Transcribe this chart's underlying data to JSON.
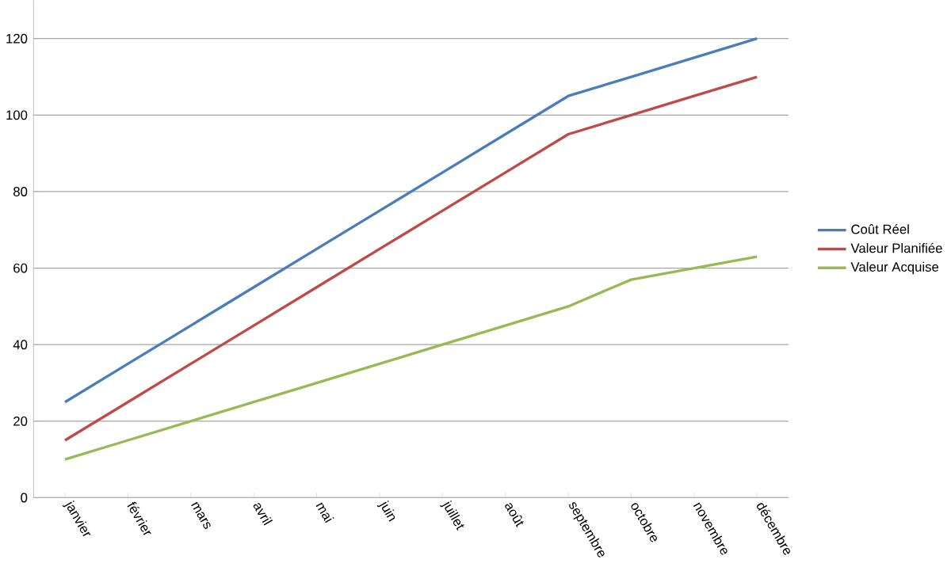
{
  "chart_data": {
    "type": "line",
    "categories": [
      "janvier",
      "février",
      "mars",
      "avril",
      "mai",
      "juin",
      "juillet",
      "août",
      "septembre",
      "octobre",
      "novembre",
      "décembre"
    ],
    "series": [
      {
        "name": "Coût Réel",
        "color": "#4a7ebb",
        "values": [
          25,
          35,
          45,
          55,
          65,
          75,
          85,
          95,
          105,
          110,
          115,
          120
        ]
      },
      {
        "name": "Valeur Planifiée",
        "color": "#be4b48",
        "values": [
          15,
          25,
          35,
          45,
          55,
          65,
          75,
          85,
          95,
          100,
          105,
          110
        ]
      },
      {
        "name": "Valeur Acquise",
        "color": "#98b954",
        "values": [
          10,
          15,
          20,
          25,
          30,
          35,
          40,
          45,
          50,
          57,
          60,
          63
        ]
      }
    ],
    "ylim": [
      0,
      130
    ],
    "yticks": [
      0,
      20,
      40,
      60,
      80,
      100,
      120
    ],
    "grid": "y",
    "legend": "right",
    "marker": "none",
    "line_style": "solid"
  }
}
